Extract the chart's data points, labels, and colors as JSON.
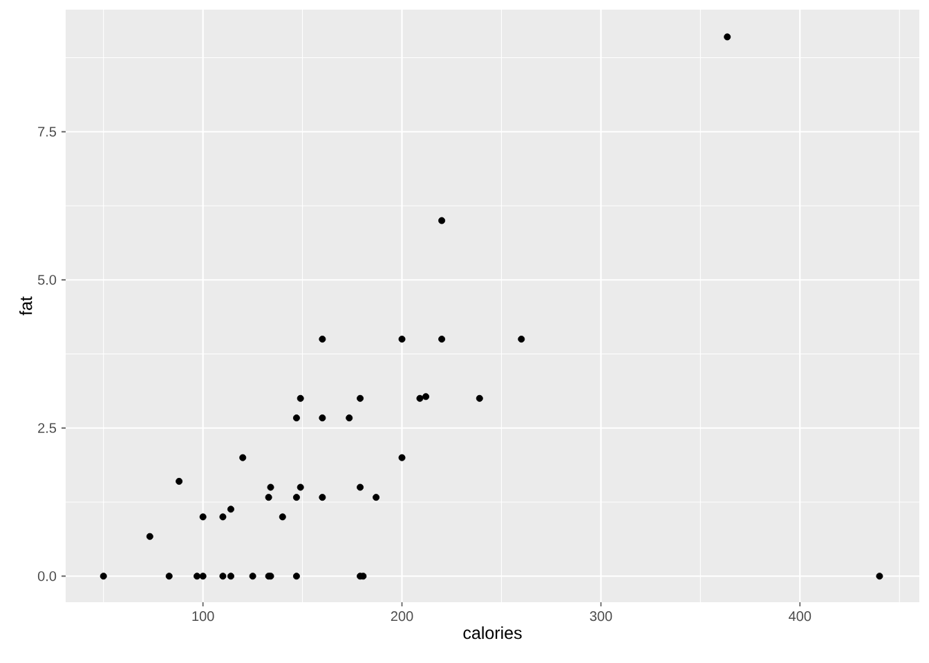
{
  "chart_data": {
    "type": "scatter",
    "xlabel": "calories",
    "ylabel": "fat",
    "x": [
      50,
      73.3,
      83,
      88,
      97,
      100,
      100,
      110,
      110,
      114,
      114,
      120,
      125,
      133,
      133,
      134,
      134,
      140,
      147,
      147,
      147,
      149,
      149,
      160,
      160,
      160,
      173.5,
      179,
      179,
      179,
      180.5,
      187,
      200,
      200,
      209,
      212,
      220,
      220,
      239,
      260,
      363.5,
      440
    ],
    "values": [
      0,
      0.67,
      0,
      1.6,
      0,
      0,
      1,
      1,
      0,
      1.13,
      0,
      2,
      0,
      1.33,
      0,
      1.5,
      0,
      1,
      2.67,
      1.33,
      0,
      3,
      1.5,
      4,
      2.67,
      1.33,
      2.67,
      3,
      1.5,
      0,
      0,
      1.33,
      4,
      2,
      3,
      3.03,
      6,
      4,
      3,
      4,
      9.1,
      0
    ],
    "color": "#000000",
    "marker": "circle",
    "grid": true,
    "xlim": [
      31,
      460
    ],
    "ylim": [
      -0.44,
      9.56
    ],
    "xticks": [
      100,
      200,
      300,
      400
    ],
    "yticks": [
      {
        "value": 0,
        "label": "0.0"
      },
      {
        "value": 2.5,
        "label": "2.5"
      },
      {
        "value": 5,
        "label": "5.0"
      },
      {
        "value": 7.5,
        "label": "7.5"
      }
    ]
  }
}
